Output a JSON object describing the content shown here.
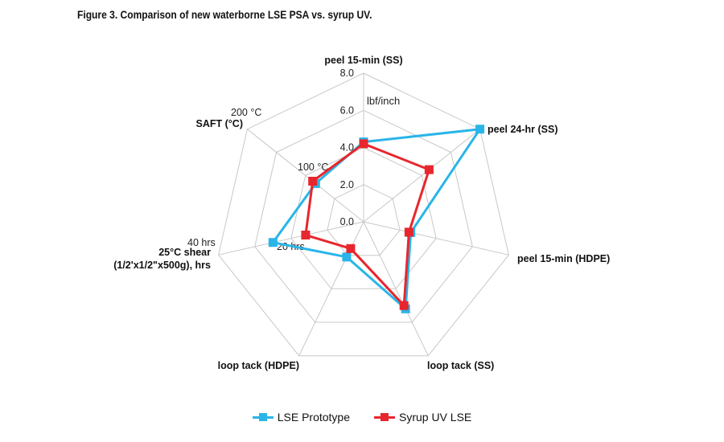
{
  "title": "Figure 3. Comparison of new waterborne LSE PSA vs. syrup UV.",
  "chart_data": {
    "type": "radar",
    "axes": [
      "peel 15-min (SS)",
      "peel 24-hr (SS)",
      "peel 15-min (HDPE)",
      "loop tack (SS)",
      "loop tack (HDPE)",
      "25°C shear\n(1/2'x1/2\"x500g), hrs",
      "SAFT (°C)"
    ],
    "rmax": 8.0,
    "ticks": [
      "0.0",
      "2.0",
      "4.0",
      "6.0",
      "8.0"
    ],
    "unit_label": "lbf/inch",
    "extra_ticks": [
      "100 °C",
      "200 °C",
      "20 hrs",
      "40 hrs"
    ],
    "grid": true,
    "legend_position": "bottom",
    "series": [
      {
        "name": "LSE Prototype",
        "color": "#29b5e8",
        "values": [
          4.3,
          8.0,
          2.6,
          5.2,
          2.1,
          5.0,
          3.3
        ]
      },
      {
        "name": "Syrup UV LSE",
        "color": "#e8262d",
        "values": [
          4.2,
          4.5,
          2.5,
          5.0,
          1.6,
          3.2,
          3.5
        ]
      }
    ]
  }
}
